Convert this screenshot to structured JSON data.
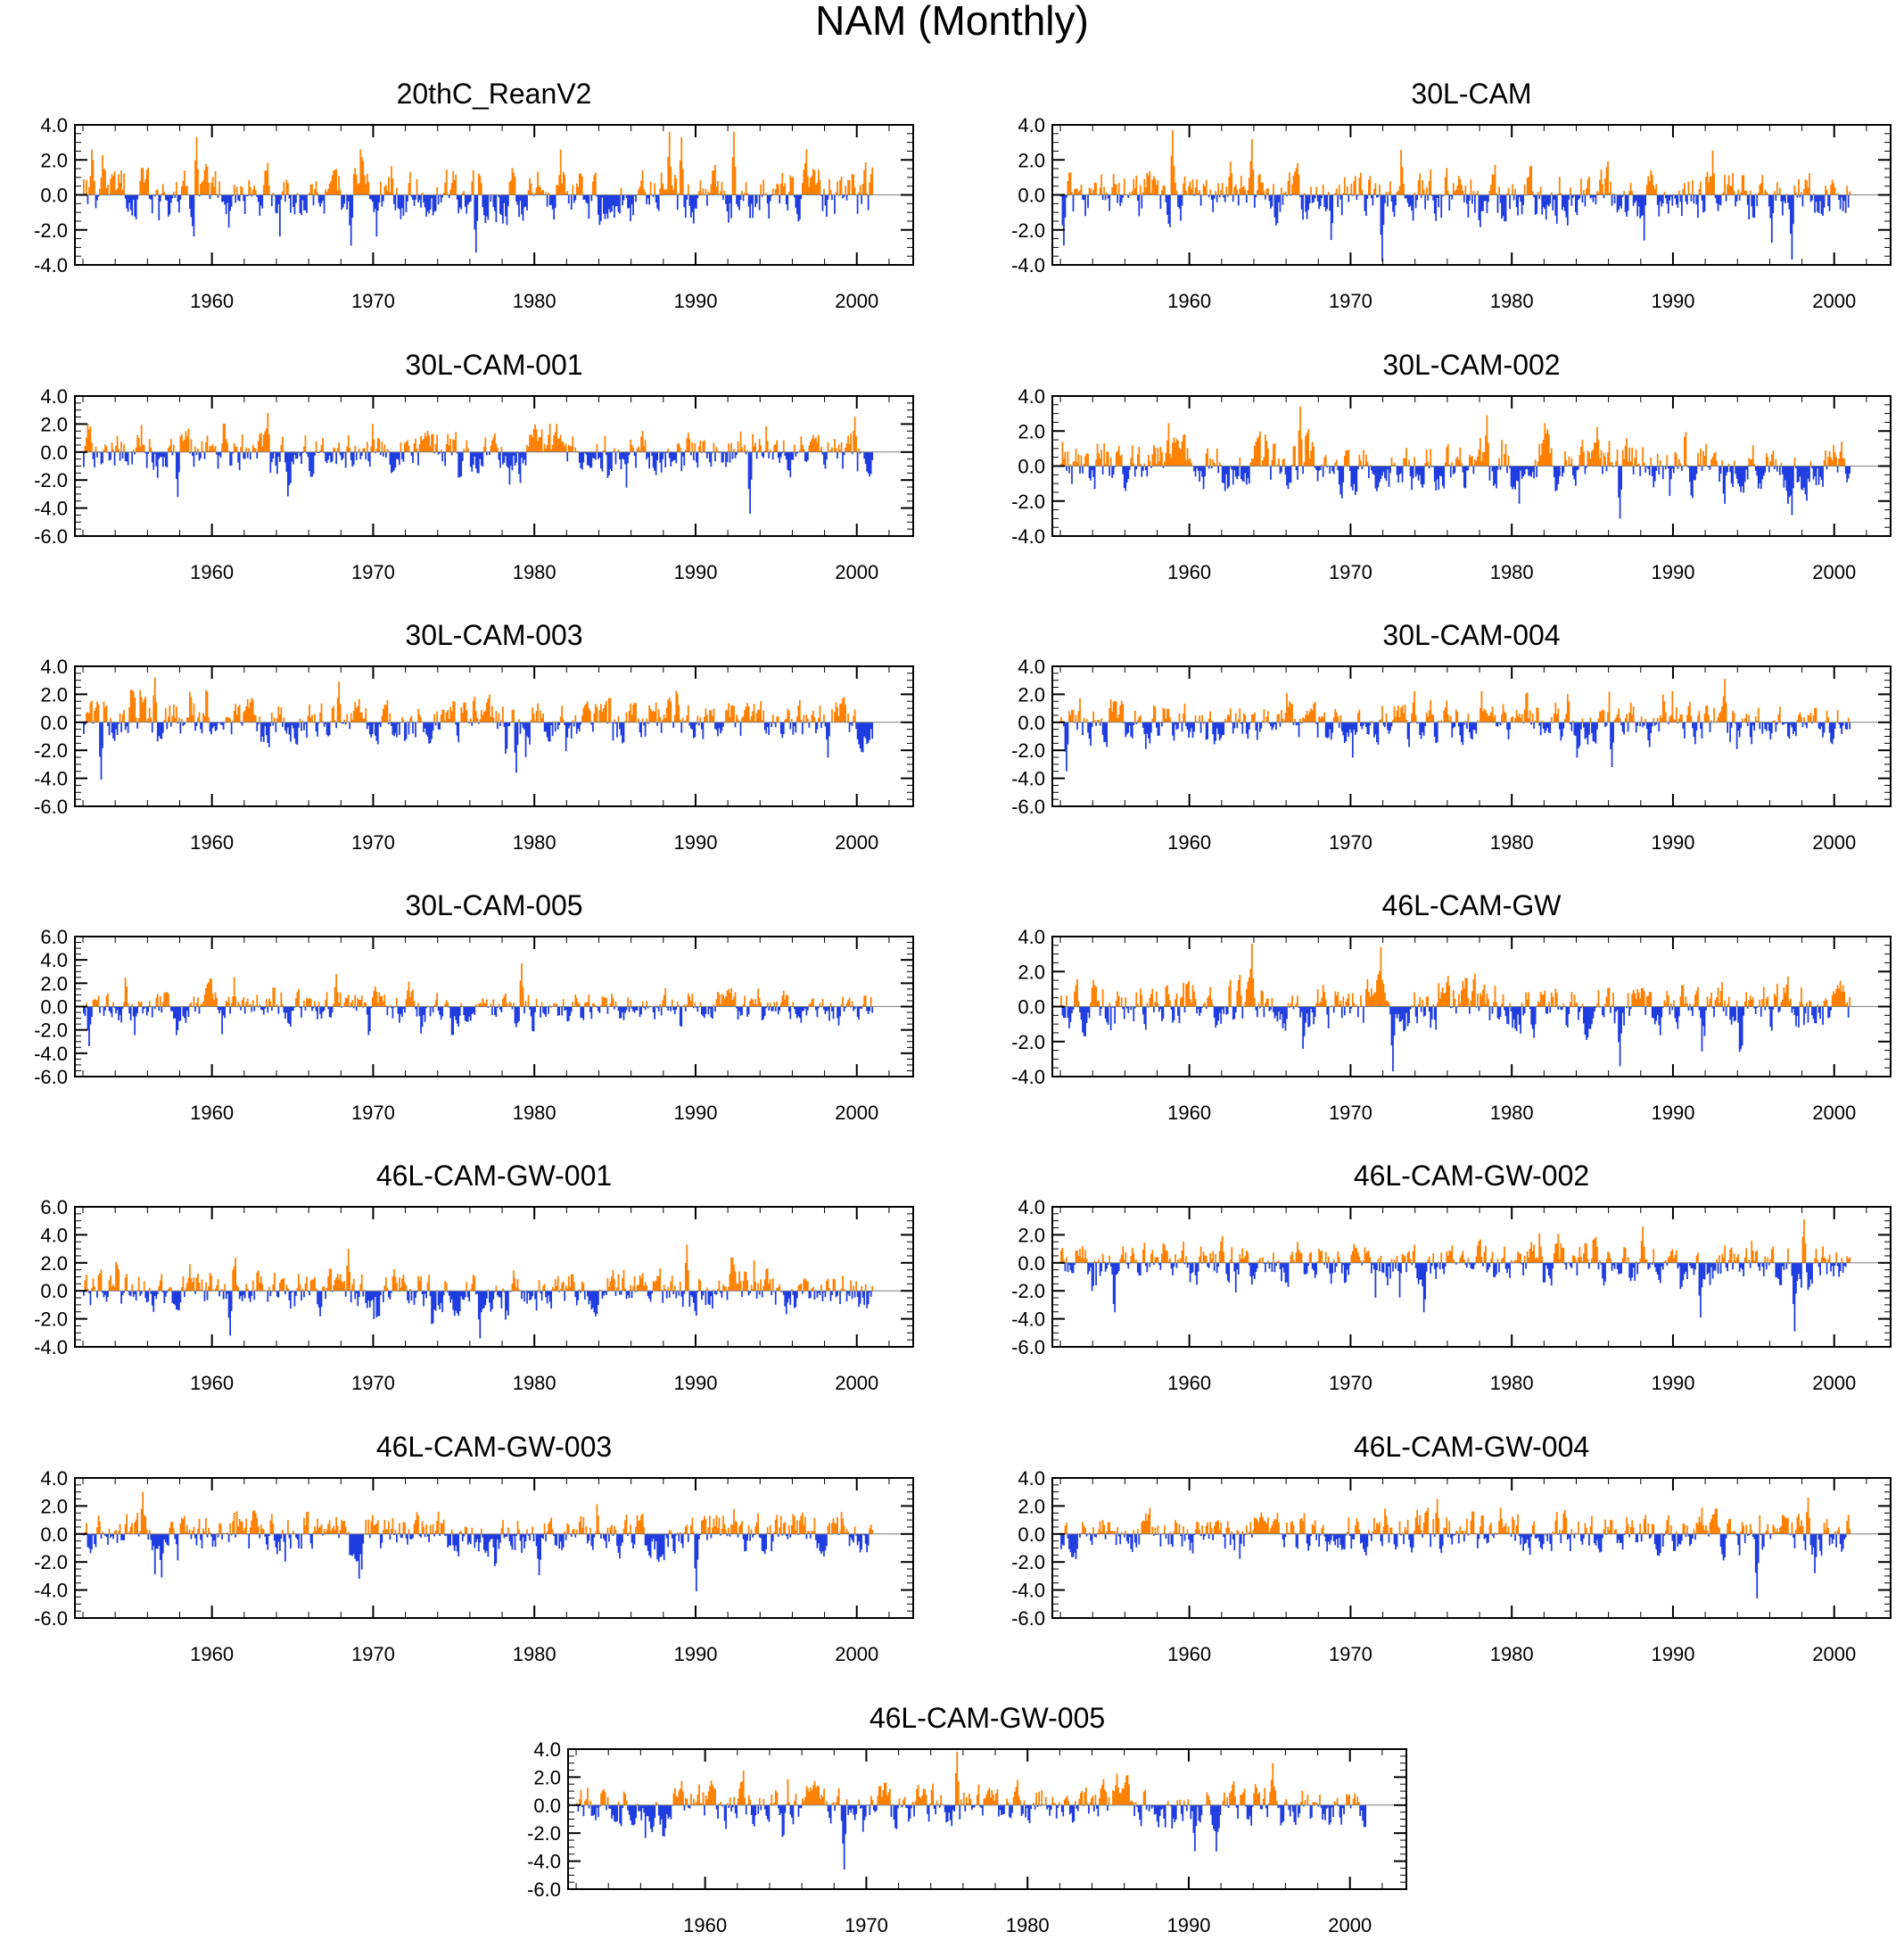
{
  "figure": {
    "title": "NAM (Monthly)"
  },
  "style": {
    "positive_color": "#ff8000",
    "negative_color": "#1e3ce0",
    "frame_color": "#000000",
    "zero_line_color": "#7f7f7f"
  },
  "chart_data": [
    {
      "type": "bar",
      "title": "20thC_ReanV2",
      "xlim": [
        1951.5,
        2003.5
      ],
      "ylim": [
        -4,
        4
      ],
      "yticks": [
        "4.0",
        "2.0",
        "0.0",
        "-2.0",
        "-4.0"
      ],
      "xticks": [
        "1960",
        "1970",
        "1980",
        "1990",
        "2000"
      ],
      "x_range": [
        1952,
        2001
      ],
      "y_extremes": {
        "max": 3.6,
        "min": -3.3
      },
      "notable_points": [
        {
          "x": 1959.0,
          "y": 3.3
        },
        {
          "x": 1968.6,
          "y": -2.9
        },
        {
          "x": 1976.3,
          "y": -3.3
        },
        {
          "x": 1988.3,
          "y": 3.6
        },
        {
          "x": 1989.1,
          "y": 3.3
        },
        {
          "x": 1992.3,
          "y": 3.6
        }
      ]
    },
    {
      "type": "bar",
      "title": "30L-CAM",
      "xlim": [
        1951.5,
        2003.5
      ],
      "ylim": [
        -4,
        4
      ],
      "yticks": [
        "4.0",
        "2.0",
        "0.0",
        "-2.0",
        "-4.0"
      ],
      "xticks": [
        "1960",
        "1970",
        "1980",
        "1990",
        "2000"
      ],
      "x_range": [
        1952,
        2001
      ],
      "y_extremes": {
        "max": 3.7,
        "min": -3.8
      },
      "notable_points": [
        {
          "x": 1958.9,
          "y": 3.7
        },
        {
          "x": 1963.8,
          "y": 3.2
        },
        {
          "x": 1971.9,
          "y": -3.8
        },
        {
          "x": 1997.3,
          "y": -3.7
        },
        {
          "x": 1952.2,
          "y": -2.9
        }
      ]
    },
    {
      "type": "bar",
      "title": "30L-CAM-001",
      "xlim": [
        1951.5,
        2003.5
      ],
      "ylim": [
        -6,
        4
      ],
      "yticks": [
        "4.0",
        "2.0",
        "0.0",
        "-2.0",
        "-4.0",
        "-6.0"
      ],
      "xticks": [
        "1960",
        "1970",
        "1980",
        "1990",
        "2000"
      ],
      "x_range": [
        1952,
        2001
      ],
      "y_extremes": {
        "max": 2.8,
        "min": -4.4
      },
      "notable_points": [
        {
          "x": 1963.4,
          "y": 2.8
        },
        {
          "x": 1993.3,
          "y": -4.4
        },
        {
          "x": 1957.8,
          "y": -3.2
        },
        {
          "x": 1999.8,
          "y": 2.5
        }
      ]
    },
    {
      "type": "bar",
      "title": "30L-CAM-002",
      "xlim": [
        1951.5,
        2003.5
      ],
      "ylim": [
        -4,
        4
      ],
      "yticks": [
        "4.0",
        "2.0",
        "0.0",
        "-2.0",
        "-4.0"
      ],
      "xticks": [
        "1960",
        "1970",
        "1980",
        "1990",
        "2000"
      ],
      "x_range": [
        1952,
        2001
      ],
      "y_extremes": {
        "max": 3.4,
        "min": -3.0
      },
      "notable_points": [
        {
          "x": 1966.8,
          "y": 3.4
        },
        {
          "x": 1978.4,
          "y": 2.9
        },
        {
          "x": 1986.7,
          "y": -3.0
        },
        {
          "x": 1997.3,
          "y": -2.8
        }
      ]
    },
    {
      "type": "bar",
      "title": "30L-CAM-003",
      "xlim": [
        1951.5,
        2003.5
      ],
      "ylim": [
        -6,
        4
      ],
      "yticks": [
        "4.0",
        "2.0",
        "0.0",
        "-2.0",
        "-4.0",
        "-6.0"
      ],
      "xticks": [
        "1960",
        "1970",
        "1980",
        "1990",
        "2000"
      ],
      "x_range": [
        1952,
        2001
      ],
      "y_extremes": {
        "max": 3.2,
        "min": -4.1
      },
      "notable_points": [
        {
          "x": 1956.4,
          "y": 3.2
        },
        {
          "x": 1953.1,
          "y": -4.1
        },
        {
          "x": 1978.8,
          "y": -3.6
        },
        {
          "x": 1967.8,
          "y": 2.9
        }
      ]
    },
    {
      "type": "bar",
      "title": "30L-CAM-004",
      "xlim": [
        1951.5,
        2003.5
      ],
      "ylim": [
        -6,
        4
      ],
      "yticks": [
        "4.0",
        "2.0",
        "0.0",
        "-2.0",
        "-4.0",
        "-6.0"
      ],
      "xticks": [
        "1960",
        "1970",
        "1980",
        "1990",
        "2000"
      ],
      "x_range": [
        1952,
        2001
      ],
      "y_extremes": {
        "max": 3.1,
        "min": -3.5
      },
      "notable_points": [
        {
          "x": 1952.3,
          "y": -3.5
        },
        {
          "x": 1993.2,
          "y": 3.1
        },
        {
          "x": 1986.2,
          "y": -3.2
        }
      ]
    },
    {
      "type": "bar",
      "title": "30L-CAM-005",
      "xlim": [
        1951.5,
        2003.5
      ],
      "ylim": [
        -6,
        6
      ],
      "yticks": [
        "6.0",
        "4.0",
        "2.0",
        "0.0",
        "-2.0",
        "-4.0",
        "-6.0"
      ],
      "xticks": [
        "1960",
        "1970",
        "1980",
        "1990",
        "2000"
      ],
      "x_range": [
        1952,
        2001
      ],
      "y_extremes": {
        "max": 3.7,
        "min": -3.4
      },
      "notable_points": [
        {
          "x": 1952.3,
          "y": -3.4
        },
        {
          "x": 1979.2,
          "y": 3.7
        },
        {
          "x": 1967.7,
          "y": 2.8
        }
      ]
    },
    {
      "type": "bar",
      "title": "46L-CAM-GW",
      "xlim": [
        1951.5,
        2003.5
      ],
      "ylim": [
        -4,
        4
      ],
      "yticks": [
        "4.0",
        "2.0",
        "0.0",
        "-2.0",
        "-4.0"
      ],
      "xticks": [
        "1960",
        "1970",
        "1980",
        "1990",
        "2000"
      ],
      "x_range": [
        1952,
        2001
      ],
      "y_extremes": {
        "max": 3.6,
        "min": -3.7
      },
      "notable_points": [
        {
          "x": 1963.8,
          "y": 3.6
        },
        {
          "x": 1971.8,
          "y": 3.4
        },
        {
          "x": 1972.6,
          "y": -3.7
        },
        {
          "x": 1986.7,
          "y": -3.4
        }
      ]
    },
    {
      "type": "bar",
      "title": "46L-CAM-GW-001",
      "xlim": [
        1951.5,
        2003.5
      ],
      "ylim": [
        -4,
        6
      ],
      "yticks": [
        "6.0",
        "4.0",
        "2.0",
        "0.0",
        "-2.0",
        "-4.0"
      ],
      "xticks": [
        "1960",
        "1970",
        "1980",
        "1990",
        "2000"
      ],
      "x_range": [
        1952,
        2001
      ],
      "y_extremes": {
        "max": 3.3,
        "min": -3.4
      },
      "notable_points": [
        {
          "x": 1961.1,
          "y": -3.2
        },
        {
          "x": 1976.6,
          "y": -3.4
        },
        {
          "x": 1989.4,
          "y": 3.3
        },
        {
          "x": 1968.4,
          "y": 3.0
        }
      ]
    },
    {
      "type": "bar",
      "title": "46L-CAM-GW-002",
      "xlim": [
        1951.5,
        2003.5
      ],
      "ylim": [
        -6,
        4
      ],
      "yticks": [
        "4.0",
        "2.0",
        "0.0",
        "-2.0",
        "-4.0",
        "-6.0"
      ],
      "xticks": [
        "1960",
        "1970",
        "1980",
        "1990",
        "2000"
      ],
      "x_range": [
        1952,
        2001
      ],
      "y_extremes": {
        "max": 3.1,
        "min": -4.9
      },
      "notable_points": [
        {
          "x": 1997.5,
          "y": -4.9
        },
        {
          "x": 1998.1,
          "y": 3.1
        },
        {
          "x": 1988.1,
          "y": 2.6
        },
        {
          "x": 1991.7,
          "y": -3.9
        }
      ]
    },
    {
      "type": "bar",
      "title": "46L-CAM-GW-003",
      "xlim": [
        1951.5,
        2003.5
      ],
      "ylim": [
        -6,
        4
      ],
      "yticks": [
        "4.0",
        "2.0",
        "0.0",
        "-2.0",
        "-4.0",
        "-6.0"
      ],
      "xticks": [
        "1960",
        "1970",
        "1980",
        "1990",
        "2000"
      ],
      "x_range": [
        1952,
        2001
      ],
      "y_extremes": {
        "max": 3.0,
        "min": -4.1
      },
      "notable_points": [
        {
          "x": 1955.7,
          "y": 3.0
        },
        {
          "x": 1990.0,
          "y": -4.1
        },
        {
          "x": 1956.8,
          "y": -3.1
        },
        {
          "x": 1969.1,
          "y": -3.2
        }
      ]
    },
    {
      "type": "bar",
      "title": "46L-CAM-GW-004",
      "xlim": [
        1951.5,
        2003.5
      ],
      "ylim": [
        -6,
        4
      ],
      "yticks": [
        "4.0",
        "2.0",
        "0.0",
        "-2.0",
        "-4.0",
        "-6.0"
      ],
      "xticks": [
        "1960",
        "1970",
        "1980",
        "1990",
        "2000"
      ],
      "x_range": [
        1952,
        2001
      ],
      "y_extremes": {
        "max": 2.6,
        "min": -4.6
      },
      "notable_points": [
        {
          "x": 1995.2,
          "y": -4.6
        },
        {
          "x": 1998.3,
          "y": 2.6
        },
        {
          "x": 1975.3,
          "y": 2.5
        }
      ]
    },
    {
      "type": "bar",
      "title": "46L-CAM-GW-005",
      "xlim": [
        1951.5,
        2003.5
      ],
      "ylim": [
        -6,
        4
      ],
      "yticks": [
        "4.0",
        "2.0",
        "0.0",
        "-2.0",
        "-4.0",
        "-6.0"
      ],
      "xticks": [
        "1960",
        "1970",
        "1980",
        "1990",
        "2000"
      ],
      "x_range": [
        1952,
        2001
      ],
      "y_extremes": {
        "max": 3.8,
        "min": -4.6
      },
      "notable_points": [
        {
          "x": 1968.6,
          "y": -4.6
        },
        {
          "x": 1975.6,
          "y": 3.8
        },
        {
          "x": 1990.3,
          "y": -3.3
        },
        {
          "x": 1995.2,
          "y": 3.0
        }
      ]
    }
  ]
}
